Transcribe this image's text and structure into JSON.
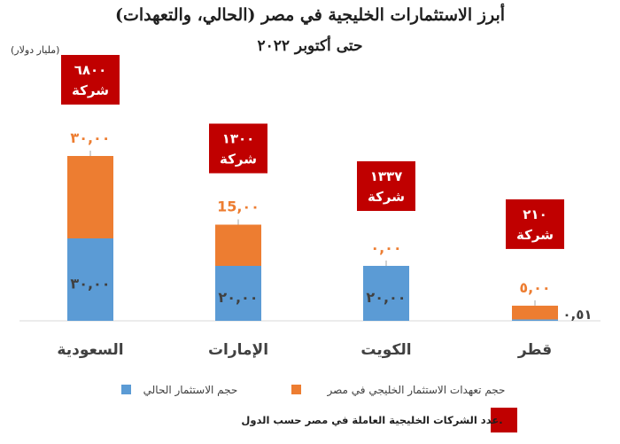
{
  "chart_data": {
    "type": "bar",
    "stacked": true,
    "title": "أبرز الاستثمارات الخليجية في مصر (الحالي، والتعهدات)",
    "subtitle": "حتى أكتوبر ٢٠٢٢",
    "ylabel": "(مليار دولار)",
    "categories": [
      "السعودية",
      "الإمارات",
      "الكويت",
      "قطر"
    ],
    "series": [
      {
        "name": "حجم الاستثمار الحالي",
        "color": "#5b9bd5",
        "values": [
          30,
          20,
          20,
          0.51
        ],
        "labels": [
          "٣٠,٠٠",
          "٢٠,٠٠",
          "٢٠,٠٠",
          "٠,٥١"
        ]
      },
      {
        "name": "حجم تعهدات الاستثمار الخليجي في مصر",
        "color": "#ed7d31",
        "values": [
          30,
          15,
          0,
          5
        ],
        "labels": [
          "٣٠,٠٠",
          "15,٠٠",
          "٠,٠٠",
          "٥,٠٠"
        ]
      }
    ],
    "companies": {
      "name": "عدد الشركات الخليجية العاملة في مصر حسب الدول.",
      "color": "#c00000",
      "values": [
        6800,
        1300,
        1337,
        210
      ],
      "labels": [
        {
          "count": "٦٨٠٠",
          "word": "شركة"
        },
        {
          "count": "١٣٠٠",
          "word": "شركة"
        },
        {
          "count": "١٣٣٧",
          "word": "شركة"
        },
        {
          "count": "٢١٠",
          "word": "شركة"
        }
      ]
    },
    "ylim": [
      0,
      60
    ],
    "grid": false,
    "legend": "bottom"
  }
}
